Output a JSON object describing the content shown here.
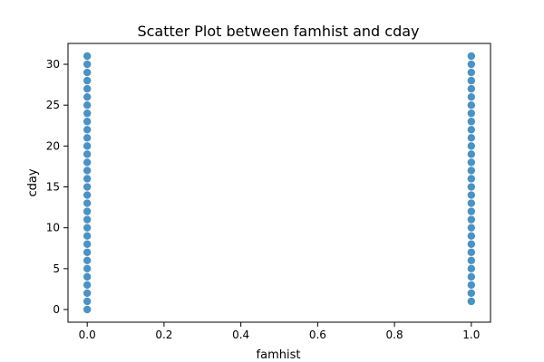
{
  "chart_data": {
    "type": "scatter",
    "title": "Scatter Plot between famhist and cday",
    "xlabel": "famhist",
    "ylabel": "cday",
    "xlim": [
      -0.05,
      1.05
    ],
    "ylim": [
      -1.55,
      32.55
    ],
    "x_ticks": [
      "0.0",
      "0.2",
      "0.4",
      "0.6",
      "0.8",
      "1.0"
    ],
    "y_ticks": [
      "0",
      "5",
      "10",
      "15",
      "20",
      "25",
      "30"
    ],
    "grid": false,
    "legend": "none",
    "marker_color": "#1f77b4",
    "series": [
      {
        "x": [
          0,
          0,
          0,
          0,
          0,
          0,
          0,
          0,
          0,
          0,
          0,
          0,
          0,
          0,
          0,
          0,
          0,
          0,
          0,
          0,
          0,
          0,
          0,
          0,
          0,
          0,
          0,
          0,
          0,
          0,
          0,
          0,
          1,
          1,
          1,
          1,
          1,
          1,
          1,
          1,
          1,
          1,
          1,
          1,
          1,
          1,
          1,
          1,
          1,
          1,
          1,
          1,
          1,
          1,
          1,
          1,
          1,
          1,
          1,
          1,
          1,
          1,
          1
        ],
        "y": [
          0,
          1,
          2,
          3,
          4,
          5,
          6,
          7,
          8,
          9,
          10,
          11,
          12,
          13,
          14,
          15,
          16,
          17,
          18,
          19,
          20,
          21,
          22,
          23,
          24,
          25,
          26,
          27,
          28,
          29,
          30,
          31,
          1,
          2,
          3,
          4,
          5,
          6,
          7,
          8,
          9,
          10,
          11,
          12,
          13,
          14,
          15,
          16,
          17,
          18,
          19,
          20,
          21,
          22,
          23,
          24,
          25,
          26,
          27,
          28,
          29,
          30,
          31
        ]
      }
    ]
  }
}
